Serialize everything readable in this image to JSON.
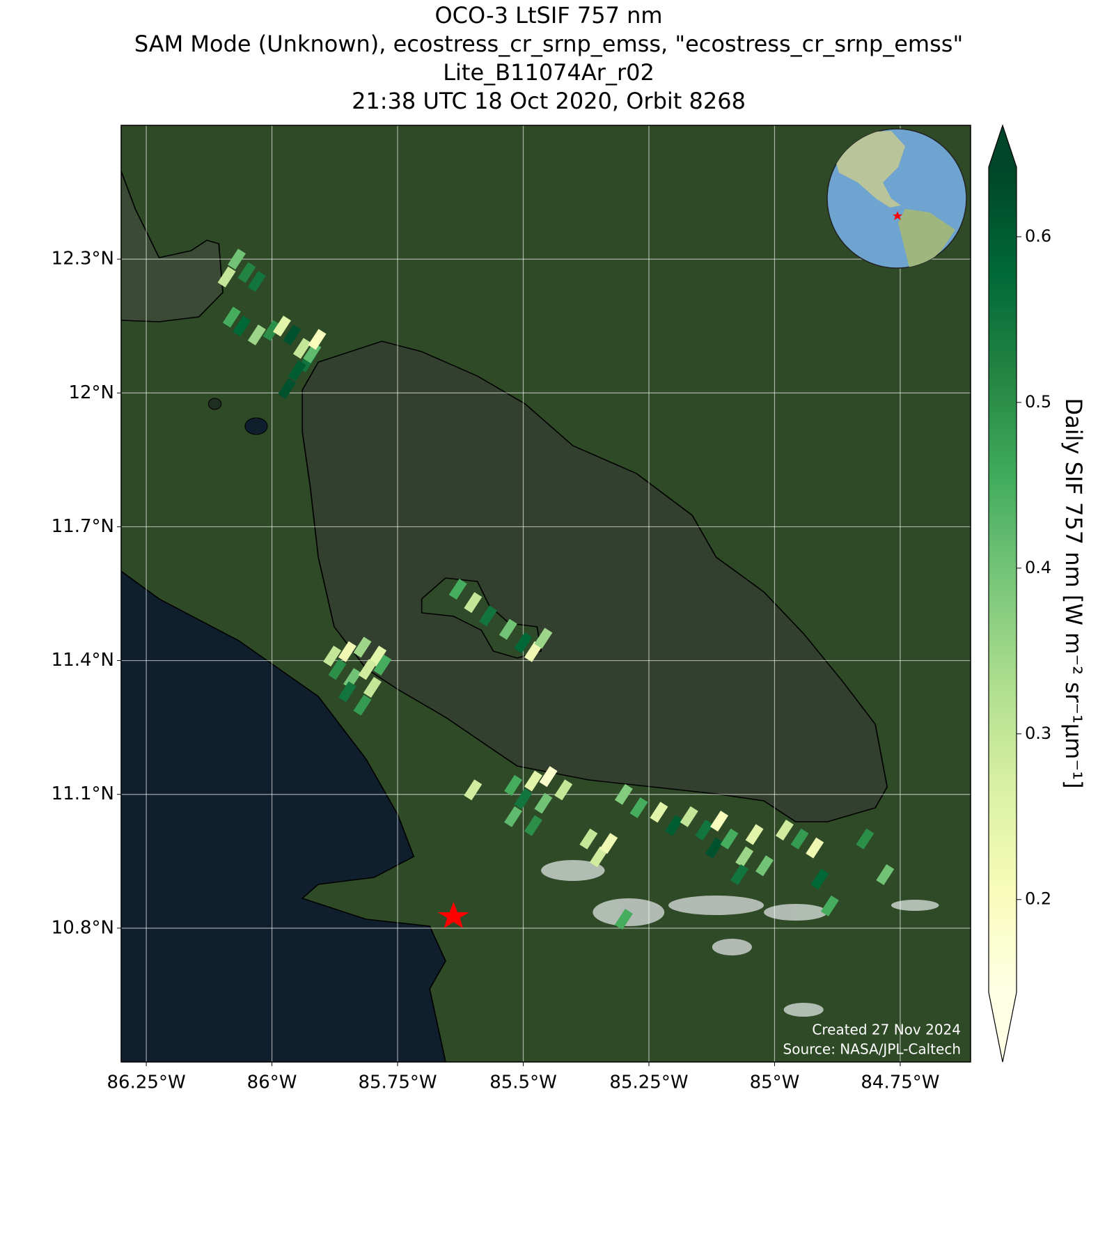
{
  "chart_data": {
    "type": "scatter",
    "title": [
      "OCO-3 LtSIF 757 nm",
      "SAM Mode (Unknown), ecostress_cr_srnp_emss, \"ecostress_cr_srnp_emss\"",
      "Lite_B11074Ar_r02",
      "21:38 UTC 18 Oct 2020, Orbit 8268"
    ],
    "xlim": [
      -86.3,
      -84.61
    ],
    "ylim": [
      10.5,
      12.6
    ],
    "xticks": [
      {
        "value": -86.25,
        "label": "86.25°W"
      },
      {
        "value": -86,
        "label": "86°W"
      },
      {
        "value": -85.75,
        "label": "85.75°W"
      },
      {
        "value": -85.5,
        "label": "85.5°W"
      },
      {
        "value": -85.25,
        "label": "85.25°W"
      },
      {
        "value": -85,
        "label": "85°W"
      },
      {
        "value": -84.75,
        "label": "84.75°W"
      }
    ],
    "yticks": [
      {
        "value": 10.8,
        "label": "10.8°N"
      },
      {
        "value": 11.1,
        "label": "11.1°N"
      },
      {
        "value": 11.4,
        "label": "11.4°N"
      },
      {
        "value": 11.7,
        "label": "11.7°N"
      },
      {
        "value": 12,
        "label": "12°N"
      },
      {
        "value": 12.3,
        "label": "12.3°N"
      }
    ],
    "grid": true,
    "series": [
      {
        "x": [
          -86.07,
          -86.05,
          -86.09,
          -86.03,
          -86.08,
          -86.06,
          -86.03,
          -86.0,
          -85.98,
          -85.96,
          -85.94,
          -85.93,
          -85.95,
          -85.92,
          -85.97,
          -85.91,
          -85.88,
          -85.85,
          -85.82,
          -85.79,
          -85.87,
          -85.84,
          -85.81,
          -85.78,
          -85.85,
          -85.8,
          -85.82,
          -85.63,
          -85.6,
          -85.57,
          -85.53,
          -85.5,
          -85.48,
          -85.46,
          -85.6,
          -85.52,
          -85.48,
          -85.45,
          -85.42,
          -85.5,
          -85.46,
          -85.52,
          -85.48,
          -85.37,
          -85.35,
          -85.33,
          -85.3,
          -85.27,
          -85.23,
          -85.2,
          -85.17,
          -85.14,
          -85.11,
          -85.12,
          -85.09,
          -85.06,
          -85.04,
          -85.07,
          -85.02,
          -84.98,
          -84.95,
          -84.92,
          -84.91,
          -84.82,
          -84.78,
          -84.89,
          -85.3
        ],
        "y": [
          12.3,
          12.27,
          12.26,
          12.25,
          12.17,
          12.15,
          12.13,
          12.14,
          12.15,
          12.13,
          12.1,
          12.07,
          12.05,
          12.09,
          12.01,
          12.12,
          11.41,
          11.42,
          11.43,
          11.41,
          11.38,
          11.36,
          11.38,
          11.39,
          11.33,
          11.34,
          11.3,
          11.56,
          11.53,
          11.5,
          11.47,
          11.44,
          11.42,
          11.45,
          11.11,
          11.12,
          11.13,
          11.14,
          11.11,
          11.09,
          11.08,
          11.05,
          11.03,
          11.0,
          10.96,
          10.99,
          11.1,
          11.07,
          11.06,
          11.03,
          11.05,
          11.02,
          11.04,
          10.98,
          11.0,
          10.96,
          11.01,
          10.92,
          10.94,
          11.02,
          11.0,
          10.98,
          10.91,
          11.0,
          10.92,
          10.85,
          10.82
        ],
        "values": [
          0.4,
          0.52,
          0.3,
          0.55,
          0.45,
          0.58,
          0.35,
          0.5,
          0.25,
          0.62,
          0.3,
          0.55,
          0.6,
          0.42,
          0.62,
          0.2,
          0.3,
          0.22,
          0.35,
          0.25,
          0.5,
          0.4,
          0.28,
          0.45,
          0.55,
          0.3,
          0.48,
          0.45,
          0.3,
          0.55,
          0.4,
          0.58,
          0.22,
          0.35,
          0.28,
          0.45,
          0.25,
          0.18,
          0.3,
          0.55,
          0.4,
          0.42,
          0.5,
          0.3,
          0.28,
          0.22,
          0.38,
          0.45,
          0.25,
          0.6,
          0.3,
          0.55,
          0.2,
          0.62,
          0.45,
          0.35,
          0.25,
          0.55,
          0.4,
          0.28,
          0.48,
          0.22,
          0.58,
          0.5,
          0.4,
          0.45,
          0.45
        ]
      }
    ],
    "colorbar": {
      "label": "Daily SIF 757 nm [W m⁻² sr⁻¹μm⁻¹]",
      "clim": [
        0.144,
        0.642
      ],
      "ticks": [
        0.2,
        0.3,
        0.4,
        0.5,
        0.6
      ],
      "colors": [
        "#ffffe5",
        "#f7fcb9",
        "#d9f0a3",
        "#addd8e",
        "#78c679",
        "#41ab5d",
        "#238443",
        "#006837",
        "#004529"
      ]
    },
    "credits": [
      "Created 27 Nov 2024",
      "Source: NASA/JPL-Caltech"
    ]
  }
}
